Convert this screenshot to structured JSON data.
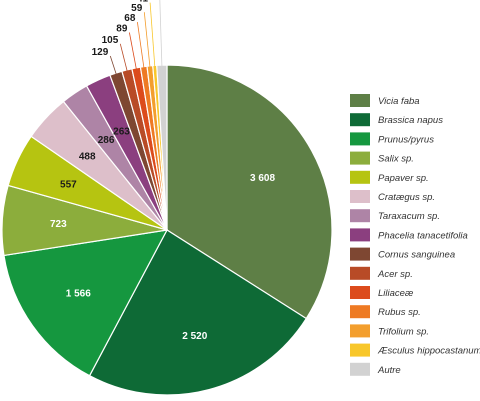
{
  "chart_data": {
    "type": "pie",
    "title": "",
    "slices": [
      {
        "label": "Vicia faba",
        "value": 3608,
        "display": "3 608",
        "color": "#5e7f46"
      },
      {
        "label": "Brassica napus",
        "value": 2520,
        "display": "2 520",
        "color": "#0e6a36"
      },
      {
        "label": "Prunus/pyrus",
        "value": 1566,
        "display": "1 566",
        "color": "#15973f"
      },
      {
        "label": "Salix sp.",
        "value": 723,
        "display": "723",
        "color": "#8cad3c"
      },
      {
        "label": "Papaver sp.",
        "value": 557,
        "display": "557",
        "color": "#b6c411"
      },
      {
        "label": "Cratægus sp.",
        "value": 488,
        "display": "488",
        "color": "#ddbfca"
      },
      {
        "label": "Taraxacum sp.",
        "value": 286,
        "display": "286",
        "color": "#ae84a6"
      },
      {
        "label": "Phacelia tanacetifolia",
        "value": 263,
        "display": "263",
        "color": "#8b3f7f"
      },
      {
        "label": "Cornus sanguinea",
        "value": 129,
        "display": "129",
        "color": "#7e4732"
      },
      {
        "label": "Acer sp.",
        "value": 105,
        "display": "105",
        "color": "#b84b27"
      },
      {
        "label": "Liliaceæ",
        "value": 89,
        "display": "89",
        "color": "#dc4b1c"
      },
      {
        "label": "Rubus sp.",
        "value": 68,
        "display": "68",
        "color": "#ee7a23"
      },
      {
        "label": "Trifolium sp.",
        "value": 59,
        "display": "59",
        "color": "#f39e2d"
      },
      {
        "label": "Æsculus hippocastanum",
        "value": 41,
        "display": "41",
        "color": "#f8c72b"
      },
      {
        "label": "Autre",
        "value": 105,
        "display": "105",
        "color": "#d2d2d2"
      }
    ],
    "legend_position": "right"
  }
}
